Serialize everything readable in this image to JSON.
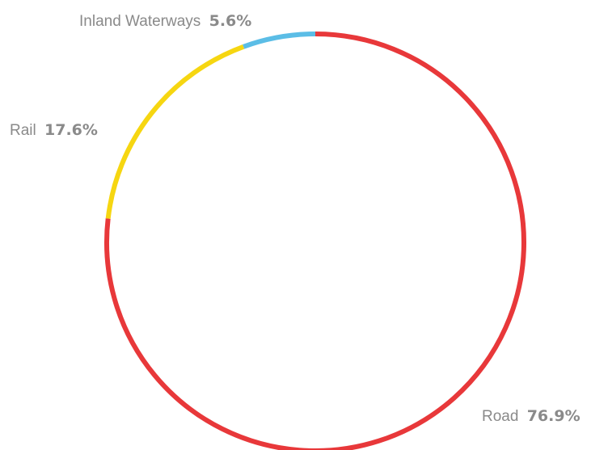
{
  "chart_data": {
    "type": "pie",
    "style": "ring-outline",
    "slices": [
      {
        "label": "Road",
        "value": 76.9,
        "display": "76.9%",
        "color": "#e8383a"
      },
      {
        "label": "Rail",
        "value": 17.6,
        "display": "17.6%",
        "color": "#f6d611"
      },
      {
        "label": "Inland Waterways",
        "value": 5.6,
        "display": "5.6%",
        "color": "#5bbde6"
      }
    ],
    "label_color": "#8a8a8a",
    "start": "top",
    "direction": "clockwise"
  }
}
